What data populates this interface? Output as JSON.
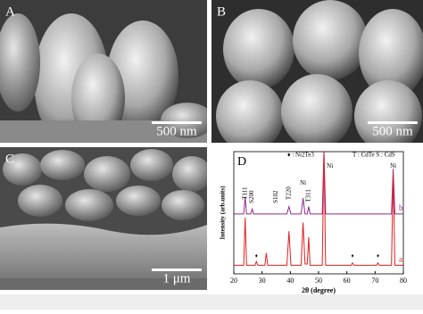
{
  "panels": [
    {
      "label": "A",
      "scale_bar": "500 nm"
    },
    {
      "label": "B",
      "scale_bar": "500 nm"
    },
    {
      "label": "C",
      "scale_bar": "1 μm"
    }
  ],
  "chart_data": {
    "type": "line",
    "label": "D",
    "xlabel": "2θ (degree)",
    "ylabel": "Intensity (arb.units)",
    "legend_note": "♦ : Ni2Te3",
    "phase_key": "T : CdTe   S : CdS",
    "xlim": [
      20,
      80
    ],
    "xticks": [
      20,
      30,
      40,
      50,
      60,
      70,
      80
    ],
    "ylim": [
      0,
      100
    ],
    "annotations": [
      {
        "text": "T111",
        "x": 24,
        "y": 66
      },
      {
        "text": "S200",
        "x": 26.5,
        "y": 63
      },
      {
        "text": "S102",
        "x": 35,
        "y": 63
      },
      {
        "text": "T220",
        "x": 39.5,
        "y": 66
      },
      {
        "text": "Ni",
        "x": 44.5,
        "y": 74
      },
      {
        "text": "T311",
        "x": 46.5,
        "y": 64
      },
      {
        "text": "Ni",
        "x": 54,
        "y": 88
      },
      {
        "text": "Ni",
        "x": 76.4,
        "y": 88
      }
    ],
    "series": [
      {
        "name": "b",
        "color": "#8e2b8e",
        "x": [
          20,
          23.5,
          24,
          24.5,
          26,
          26.5,
          27,
          38.8,
          39.5,
          40.2,
          43.8,
          44.5,
          45.2,
          46,
          46.5,
          47,
          51.3,
          51.9,
          52.5,
          75.8,
          76.4,
          77,
          80
        ],
        "values": [
          49,
          49,
          63,
          49,
          49,
          53,
          49,
          49,
          55,
          49,
          49,
          62,
          49,
          49,
          55,
          49,
          49,
          100,
          49,
          49,
          86,
          49,
          49
        ]
      },
      {
        "name": "a",
        "color": "#e02020",
        "x": [
          20,
          23.5,
          24,
          24.5,
          27.5,
          28,
          28.5,
          31,
          31.5,
          32,
          38.8,
          39.5,
          40.2,
          43.8,
          44.5,
          45.2,
          46,
          46.5,
          47,
          51.3,
          51.9,
          52.5,
          61.5,
          62,
          62.5,
          70.5,
          71,
          71.5,
          75.8,
          76.4,
          77,
          80
        ],
        "values": [
          7,
          7,
          46,
          7,
          7,
          10,
          7,
          7,
          17,
          7,
          7,
          35,
          7,
          7,
          42,
          8,
          8,
          30,
          7,
          7,
          100,
          7,
          7,
          9,
          7,
          7,
          9,
          7,
          7,
          82,
          7,
          7
        ]
      }
    ]
  }
}
